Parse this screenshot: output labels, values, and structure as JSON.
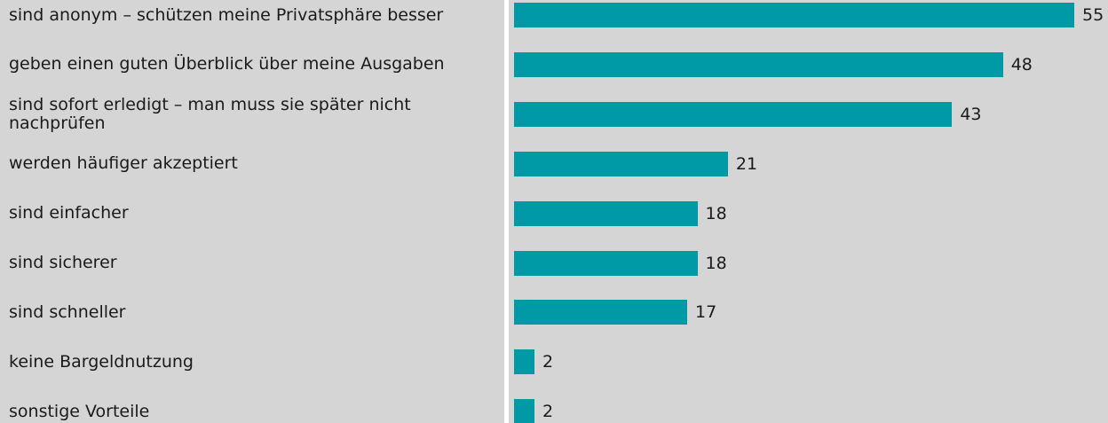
{
  "chart_data": {
    "type": "bar",
    "orientation": "horizontal",
    "color": "#0099a6",
    "categories": [
      "sind anonym – schützen meine Privatsphäre besser",
      "geben einen guten Überblick über meine Ausgaben",
      "sind sofort erledigt – man muss sie später nicht nachprüfen",
      "werden häufiger akzeptiert",
      "sind einfacher",
      "sind sicherer",
      "sind schneller",
      "keine Bargeldnutzung",
      "sonstige Vorteile"
    ],
    "values": [
      55,
      48,
      43,
      21,
      18,
      18,
      17,
      2,
      2
    ]
  }
}
